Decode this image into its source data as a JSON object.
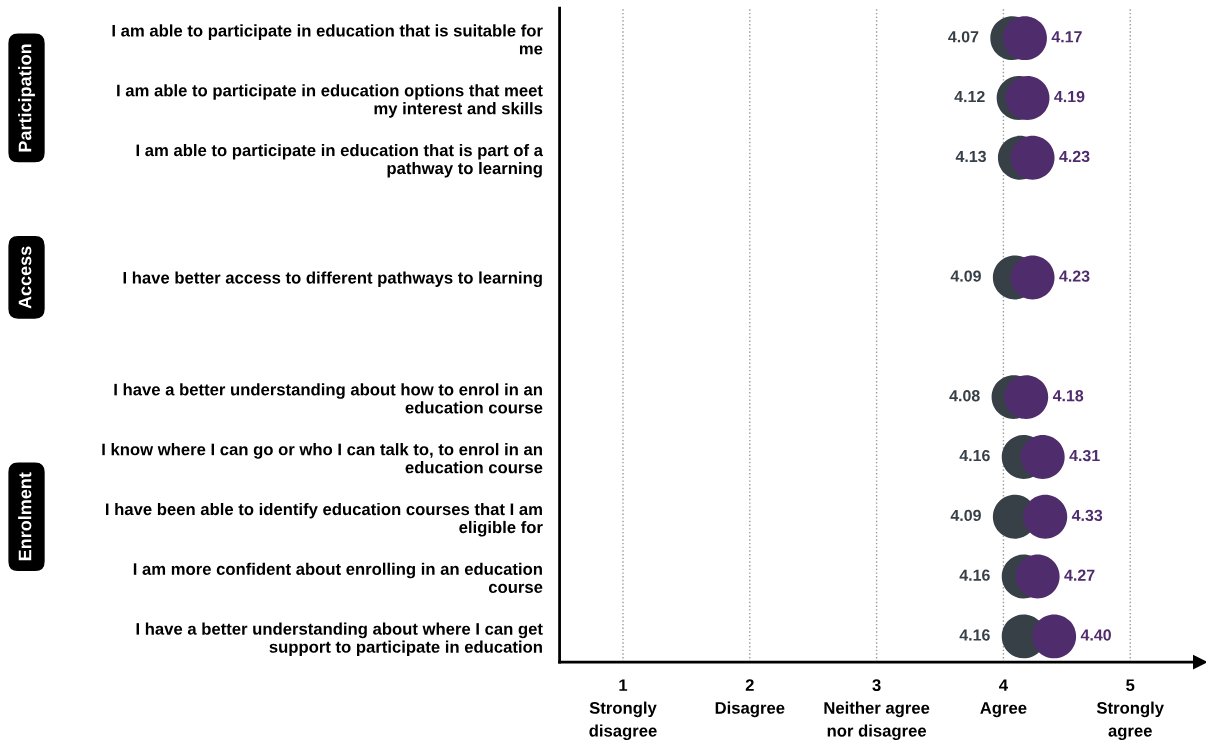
{
  "chart_data": {
    "type": "scatter",
    "categories": [
      "I am able to participate in education that is suitable for\nme",
      "I am able to participate in education options that meet\nmy interest and skills",
      "I am able to participate in education that is part of a\npathway to learning",
      null,
      "I have better access to different pathways to learning",
      null,
      "I have a better understanding about how to enrol in an\neducation course",
      "I know where I can go or who I can talk to, to enrol in an\neducation course",
      "I have been able to identify education courses that I am\neligible for",
      "I am more confident about enrolling in an education\ncourse",
      "I have a better understanding about where I can get\nsupport to participate in education"
    ],
    "series": [
      {
        "color": "#373f47",
        "values": [
          4.07,
          4.12,
          4.13,
          null,
          4.09,
          null,
          4.08,
          4.16,
          4.09,
          4.16,
          4.16
        ],
        "value_labels": [
          "4.07",
          "4.12",
          "4.13",
          null,
          "4.09",
          null,
          "4.08",
          "4.16",
          "4.09",
          "4.16",
          "4.16"
        ]
      },
      {
        "color": "#4f2d6d",
        "values": [
          4.17,
          4.19,
          4.23,
          null,
          4.23,
          null,
          4.18,
          4.31,
          4.33,
          4.27,
          4.4
        ],
        "value_labels": [
          "4.17",
          "4.19",
          "4.23",
          null,
          "4.23",
          null,
          "4.18",
          "4.31",
          "4.33",
          "4.27",
          "4.40"
        ]
      }
    ],
    "orientation": "horizontal",
    "xlim": [
      0.5,
      5.55
    ],
    "xticks": [
      {
        "value": 1,
        "label": "1\nStrongly\ndisagree"
      },
      {
        "value": 2,
        "label": "2\nDisagree"
      },
      {
        "value": 3,
        "label": "3\nNeither agree\nnor disagree"
      },
      {
        "value": 4,
        "label": "4\nAgree"
      },
      {
        "value": 5,
        "label": "5\nStrongly\nagree"
      }
    ],
    "grid": "x",
    "marker": "circle",
    "annotations": [
      "Participation",
      "Access",
      "Enrolment"
    ]
  }
}
